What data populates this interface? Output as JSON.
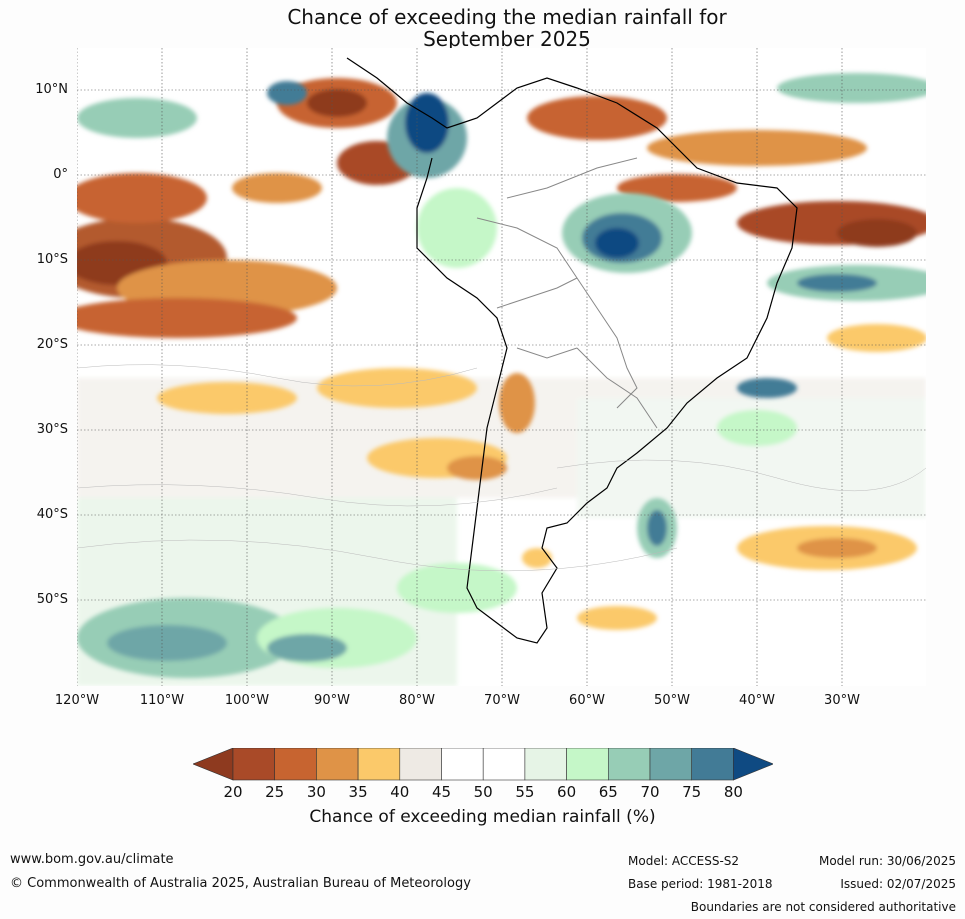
{
  "title": {
    "line1": "Chance of exceeding the median rainfall for",
    "line2": "September 2025"
  },
  "map": {
    "lat_labels": [
      "10°N",
      "0°",
      "10°S",
      "20°S",
      "30°S",
      "40°S",
      "50°S"
    ],
    "lon_labels": [
      "120°W",
      "110°W",
      "100°W",
      "90°W",
      "80°W",
      "70°W",
      "60°W",
      "50°W",
      "40°W",
      "30°W"
    ]
  },
  "legend": {
    "ticks": [
      "20",
      "25",
      "30",
      "35",
      "40",
      "45",
      "50",
      "55",
      "60",
      "65",
      "70",
      "75",
      "80"
    ],
    "colors": [
      "#8e3a1f",
      "#a94a28",
      "#c76430",
      "#df9347",
      "#fbc96a",
      "#eeeae4",
      "#ffffff",
      "#ffffff",
      "#e6f4e6",
      "#c5f7c8",
      "#97cdb6",
      "#6ea6a7",
      "#427b96",
      "#0f4a82"
    ],
    "label": "Chance of exceeding median rainfall (%)"
  },
  "footer": {
    "site": "www.bom.gov.au/climate",
    "copyright": "© Commonwealth of Australia 2025, Australian Bureau of Meteorology",
    "model": "Model: ACCESS-S2",
    "base_period": "Base period: 1981-2018",
    "model_run": "Model run: 30/06/2025",
    "issued": "Issued: 02/07/2025",
    "disclaimer": "Boundaries are not considered authoritative"
  }
}
